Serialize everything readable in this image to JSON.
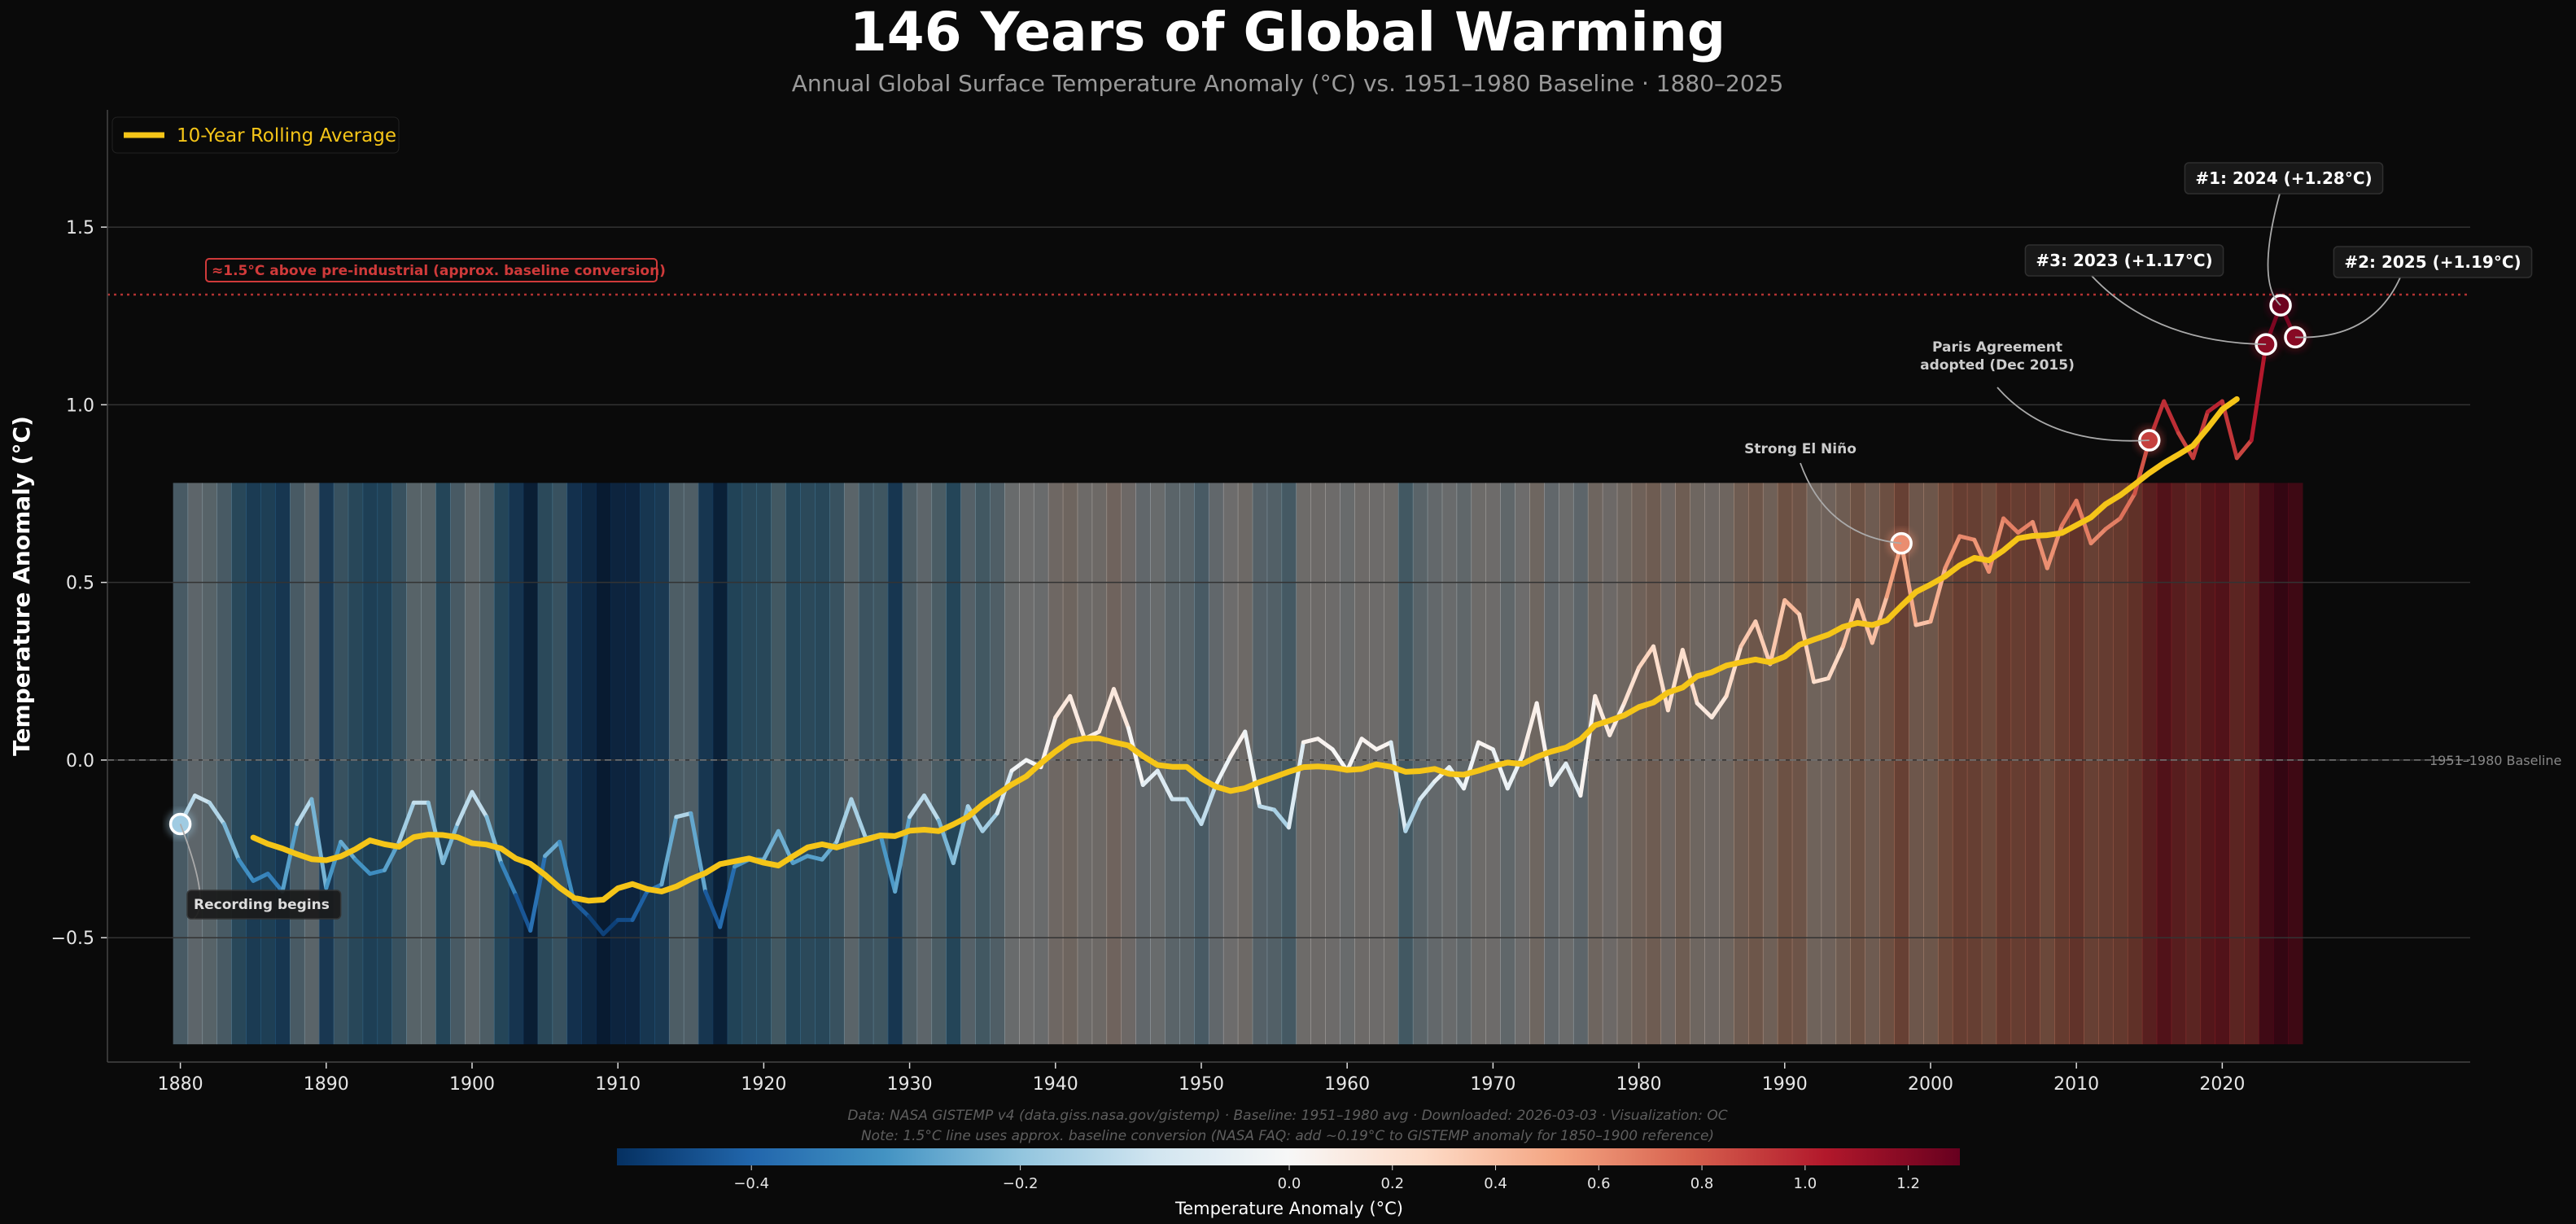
{
  "chart_data": {
    "type": "line",
    "title": "146 Years of Global Warming",
    "subtitle": "Annual Global Surface Temperature Anomaly (°C) vs. 1951–1980 Baseline  ·  1880–2025",
    "ylabel": "Temperature Anomaly (°C)",
    "xlabel": "",
    "xlim": [
      1875,
      2037
    ],
    "ylim": [
      -0.85,
      1.83
    ],
    "xticks": [
      1880,
      1890,
      1900,
      1910,
      1920,
      1930,
      1940,
      1950,
      1960,
      1970,
      1980,
      1990,
      2000,
      2010,
      2020
    ],
    "yticks": [
      -0.5,
      0.0,
      0.5,
      1.0,
      1.5
    ],
    "ytick_labels": [
      "−0.5",
      "0.0",
      "0.5",
      "1.0",
      "1.5"
    ],
    "grid": "horizontal",
    "legend": {
      "placement": "top-left",
      "entries": [
        "10-Year Rolling Average"
      ]
    },
    "colormap": {
      "name": "RdBu_r",
      "vmin": -0.5,
      "center": 0.0,
      "vmax": 1.3
    },
    "colorbar": {
      "label": "Temperature Anomaly (°C)",
      "ticks": [
        -0.4,
        -0.2,
        0.0,
        0.2,
        0.4,
        0.6,
        0.8,
        1.0,
        1.2
      ],
      "tick_labels": [
        "−0.4",
        "−0.2",
        "0.0",
        "0.2",
        "0.4",
        "0.6",
        "0.8",
        "1.0",
        "1.2"
      ]
    },
    "years": [
      1880,
      1881,
      1882,
      1883,
      1884,
      1885,
      1886,
      1887,
      1888,
      1889,
      1890,
      1891,
      1892,
      1893,
      1894,
      1895,
      1896,
      1897,
      1898,
      1899,
      1900,
      1901,
      1902,
      1903,
      1904,
      1905,
      1906,
      1907,
      1908,
      1909,
      1910,
      1911,
      1912,
      1913,
      1914,
      1915,
      1916,
      1917,
      1918,
      1919,
      1920,
      1921,
      1922,
      1923,
      1924,
      1925,
      1926,
      1927,
      1928,
      1929,
      1930,
      1931,
      1932,
      1933,
      1934,
      1935,
      1936,
      1937,
      1938,
      1939,
      1940,
      1941,
      1942,
      1943,
      1944,
      1945,
      1946,
      1947,
      1948,
      1949,
      1950,
      1951,
      1952,
      1953,
      1954,
      1955,
      1956,
      1957,
      1958,
      1959,
      1960,
      1961,
      1962,
      1963,
      1964,
      1965,
      1966,
      1967,
      1968,
      1969,
      1970,
      1971,
      1972,
      1973,
      1974,
      1975,
      1976,
      1977,
      1978,
      1979,
      1980,
      1981,
      1982,
      1983,
      1984,
      1985,
      1986,
      1987,
      1988,
      1989,
      1990,
      1991,
      1992,
      1993,
      1994,
      1995,
      1996,
      1997,
      1998,
      1999,
      2000,
      2001,
      2002,
      2003,
      2004,
      2005,
      2006,
      2007,
      2008,
      2009,
      2010,
      2011,
      2012,
      2013,
      2014,
      2015,
      2016,
      2017,
      2018,
      2019,
      2020,
      2021,
      2022,
      2023,
      2024,
      2025
    ],
    "anomaly": [
      -0.18,
      -0.1,
      -0.12,
      -0.18,
      -0.28,
      -0.34,
      -0.32,
      -0.37,
      -0.18,
      -0.11,
      -0.36,
      -0.23,
      -0.28,
      -0.32,
      -0.31,
      -0.23,
      -0.12,
      -0.12,
      -0.29,
      -0.18,
      -0.09,
      -0.16,
      -0.29,
      -0.38,
      -0.48,
      -0.27,
      -0.23,
      -0.4,
      -0.44,
      -0.49,
      -0.45,
      -0.45,
      -0.37,
      -0.35,
      -0.16,
      -0.15,
      -0.37,
      -0.47,
      -0.3,
      -0.28,
      -0.28,
      -0.2,
      -0.29,
      -0.27,
      -0.28,
      -0.23,
      -0.11,
      -0.22,
      -0.21,
      -0.37,
      -0.16,
      -0.1,
      -0.17,
      -0.29,
      -0.13,
      -0.2,
      -0.15,
      -0.03,
      0.0,
      -0.02,
      0.12,
      0.18,
      0.06,
      0.08,
      0.2,
      0.09,
      -0.07,
      -0.03,
      -0.11,
      -0.11,
      -0.18,
      -0.07,
      0.01,
      0.08,
      -0.13,
      -0.14,
      -0.19,
      0.05,
      0.06,
      0.03,
      -0.03,
      0.06,
      0.03,
      0.05,
      -0.2,
      -0.11,
      -0.06,
      -0.02,
      -0.08,
      0.05,
      0.03,
      -0.08,
      0.01,
      0.16,
      -0.07,
      -0.01,
      -0.1,
      0.18,
      0.07,
      0.16,
      0.26,
      0.32,
      0.14,
      0.31,
      0.16,
      0.12,
      0.18,
      0.32,
      0.39,
      0.27,
      0.45,
      0.41,
      0.22,
      0.23,
      0.32,
      0.45,
      0.33,
      0.46,
      0.61,
      0.38,
      0.39,
      0.54,
      0.63,
      0.62,
      0.53,
      0.68,
      0.64,
      0.67,
      0.54,
      0.66,
      0.73,
      0.61,
      0.65,
      0.68,
      0.75,
      0.9,
      1.01,
      0.92,
      0.85,
      0.98,
      1.01,
      0.85,
      0.9,
      1.17,
      1.28,
      1.19
    ],
    "rolling_window": 10,
    "reference_lines": [
      {
        "value": 0.0,
        "label": "1951–1980 Baseline",
        "style": "dashed"
      },
      {
        "value": 1.31,
        "label": "≈1.5°C above pre-industrial (approx. baseline conversion)",
        "style": "dotted",
        "color": "#d03a3a"
      }
    ],
    "annotations": [
      {
        "year": 1880,
        "text": "Recording begins"
      },
      {
        "year": 1998,
        "text": "Strong El Niño"
      },
      {
        "year": 2015,
        "text": "Paris Agreement\nadopted (Dec 2015)"
      },
      {
        "year": 2023,
        "text": "#3: 2023 (+1.17°C)"
      },
      {
        "year": 2024,
        "text": "#1: 2024 (+1.28°C)"
      },
      {
        "year": 2025,
        "text": "#2: 2025 (+1.19°C)"
      }
    ],
    "colors": {
      "background": "#0a0a0a",
      "rolling": "#f5c518",
      "threshold": "#d03a3a",
      "text": "#ffffff",
      "subtitle": "#9a9a9a"
    },
    "footer": [
      "Data: NASA GISTEMP v4 (data.giss.nasa.gov/gistemp) · Baseline: 1951–1980 avg · Downloaded: 2026-03-03 · Visualization: OC",
      "Note: 1.5°C line uses approx. baseline conversion (NASA FAQ: add ~0.19°C to GISTEMP anomaly for 1850–1900 reference)"
    ]
  }
}
